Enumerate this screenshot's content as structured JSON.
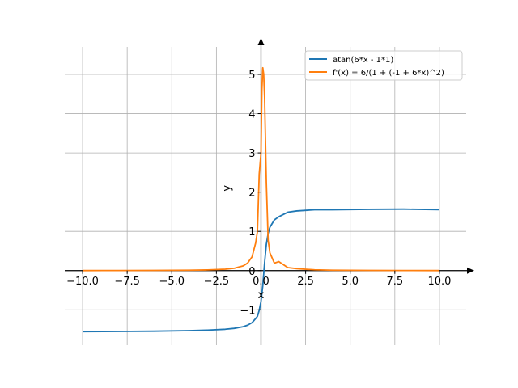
{
  "chart_data": {
    "type": "line",
    "title": "",
    "xlabel": "x",
    "ylabel": "y",
    "xlim": [
      -11,
      11.5
    ],
    "ylim": [
      -1.9,
      5.7
    ],
    "grid": true,
    "legend_position": "upper-right",
    "x_ticks": [
      -10,
      -7.5,
      -5,
      -2.5,
      0,
      2.5,
      5,
      7.5,
      10
    ],
    "x_tick_labels": [
      "−10.0",
      "−7.5",
      "−5.0",
      "−2.5",
      "0.0",
      "2.5",
      "5.0",
      "7.5",
      "10.0"
    ],
    "y_ticks": [
      -1,
      0,
      1,
      2,
      3,
      4,
      5
    ],
    "y_tick_labels": [
      "−1",
      "0",
      "1",
      "2",
      "3",
      "4",
      "5"
    ],
    "series": [
      {
        "name": "atan(6*x - 1*1)",
        "color": "#1f77b4",
        "x": [
          -10,
          -8,
          -6,
          -4,
          -3,
          -2,
          -1.5,
          -1,
          -0.75,
          -0.5,
          -0.3,
          -0.2,
          -0.1,
          0,
          0.1,
          0.2,
          0.3,
          0.4,
          0.5,
          0.75,
          1,
          1.5,
          2,
          3,
          4,
          6,
          8,
          10
        ],
        "y": [
          -1.5543,
          -1.5504,
          -1.5433,
          -1.5296,
          -1.5162,
          -1.494,
          -1.4711,
          -1.4289,
          -1.3909,
          -1.3258,
          -1.222,
          -1.1659,
          -1.0122,
          -0.7854,
          -0.3805,
          0.1974,
          0.6747,
          0.9505,
          1.1071,
          1.2925,
          1.3734,
          1.4877,
          1.52,
          1.5502,
          1.5502,
          1.5615,
          1.5661,
          1.5541
        ]
      },
      {
        "name": "f'(x) = 6/(1 + (-1 + 6*x)^2)",
        "color": "#ff7f0e",
        "x": [
          -10,
          -8,
          -6,
          -4,
          -3,
          -2,
          -1.5,
          -1,
          -0.75,
          -0.5,
          -0.3,
          -0.2,
          -0.1,
          0,
          0.05,
          0.1,
          0.15,
          0.2,
          0.3,
          0.4,
          0.5,
          0.75,
          1,
          1.5,
          2,
          3,
          4,
          6,
          8,
          10
        ],
        "y": [
          0.00164,
          0.00255,
          0.0045,
          0.00995,
          0.0174,
          0.0355,
          0.06,
          0.12,
          0.192,
          0.3529,
          0.7059,
          1.0,
          2.459,
          3.0,
          4.62,
          5.17,
          5.0,
          4.41,
          2.22,
          0.77,
          0.45,
          0.19,
          0.23,
          0.078,
          0.05,
          0.02,
          0.01,
          0.005,
          0.003,
          0.0017
        ]
      }
    ]
  }
}
